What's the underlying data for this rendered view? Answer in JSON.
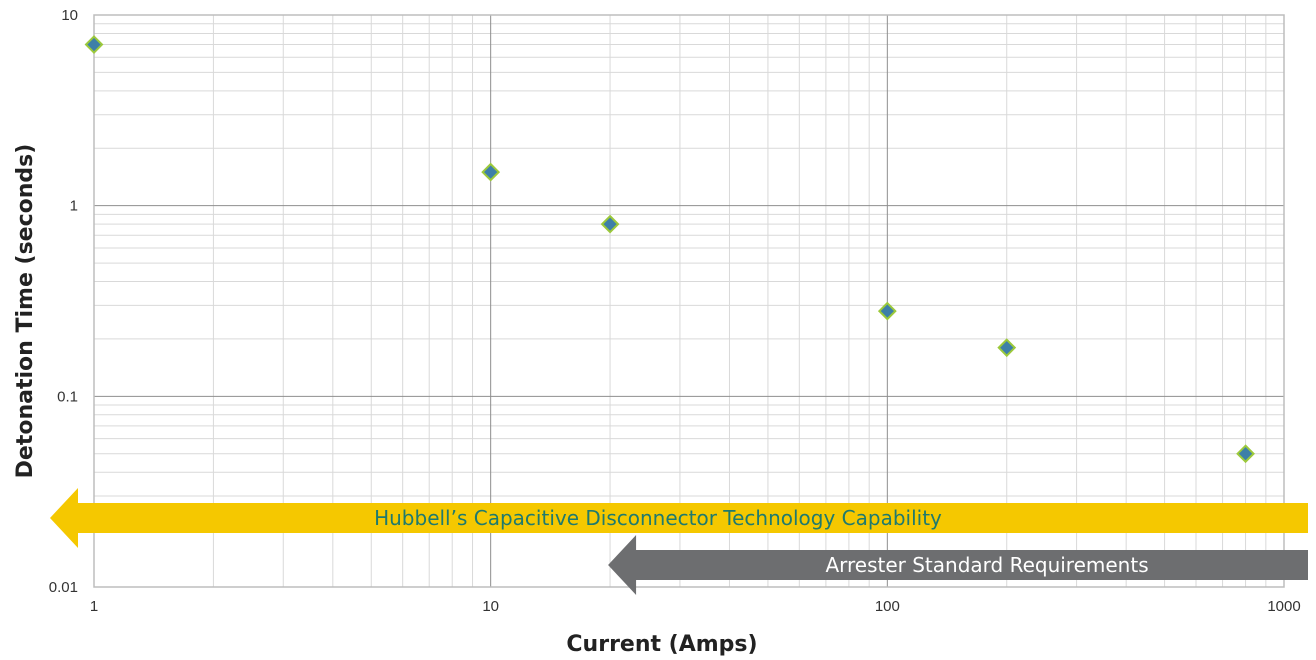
{
  "chart_data": {
    "type": "scatter",
    "title": "",
    "xlabel": "Current (Amps)",
    "ylabel": "Detonation Time (seconds)",
    "x_scale": "log",
    "y_scale": "log",
    "xlim": [
      1,
      1000
    ],
    "ylim": [
      0.01,
      10
    ],
    "x_tick_labels": [
      "1",
      "10",
      "100",
      "1000"
    ],
    "y_tick_labels": [
      "10",
      "1",
      "0.1",
      "0.01"
    ],
    "grid": true,
    "marker": "diamond",
    "marker_color": "#3d7fa8",
    "marker_edge_color": "#9cc93b",
    "points": [
      {
        "x": 1,
        "y": 7
      },
      {
        "x": 10,
        "y": 1.5
      },
      {
        "x": 20,
        "y": 0.8
      },
      {
        "x": 100,
        "y": 0.28
      },
      {
        "x": 200,
        "y": 0.18
      },
      {
        "x": 800,
        "y": 0.05
      }
    ],
    "annotations": [
      {
        "text": "Hubbell’s Capacitive Disconnector Technology Capability",
        "x_from": 1,
        "x_to": 1000,
        "fill": "#f5c800",
        "text_color": "#1f7a6e"
      },
      {
        "text": "Arrester Standard Requirements",
        "x_from": 20,
        "x_to": 1000,
        "fill": "#6d6e70",
        "text_color": "#ffffff"
      }
    ]
  }
}
